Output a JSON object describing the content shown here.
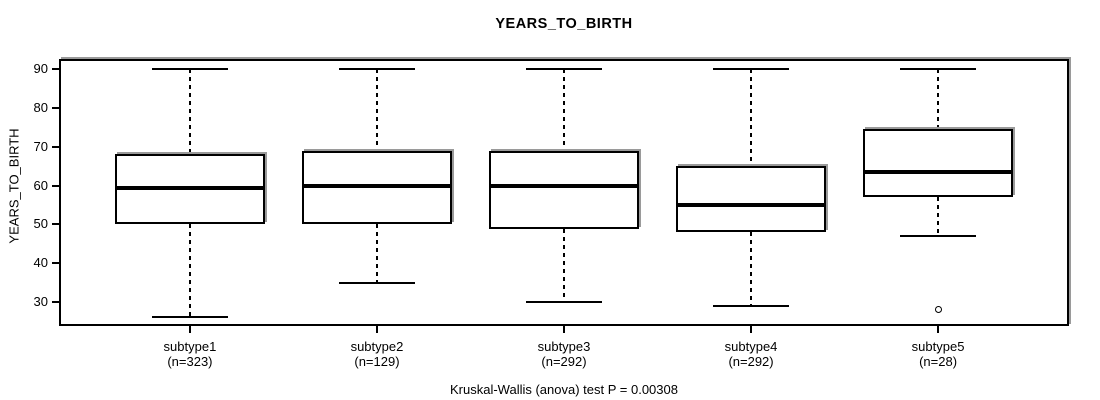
{
  "figure": {
    "title": "YEARS_TO_BIRTH",
    "y_axis_label": "YEARS_TO_BIRTH",
    "footer": "Kruskal-Wallis (anova) test P = 0.00308"
  },
  "colors": {
    "line": "#000000",
    "background": "#ffffff",
    "frame_shadow": "#9a9a9a"
  },
  "chart_data": {
    "type": "boxplot",
    "title": "YEARS_TO_BIRTH",
    "xlabel": "",
    "ylabel": "YEARS_TO_BIRTH",
    "footer_annotation": "Kruskal-Wallis (anova) test P = 0.00308",
    "statistical_test": "Kruskal-Wallis (anova)",
    "p_value": 0.00308,
    "grid": false,
    "y_ticks": [
      30,
      40,
      50,
      60,
      70,
      80,
      90
    ],
    "ylim": [
      23.8,
      92.6
    ],
    "categories": [
      "subtype1",
      "subtype2",
      "subtype3",
      "subtype4",
      "subtype5"
    ],
    "category_sublabels": [
      "(n=323)",
      "(n=129)",
      "(n=292)",
      "(n=292)",
      "(n=28)"
    ],
    "groups": [
      {
        "label": "subtype1",
        "n_label": "(n=323)",
        "n": 323,
        "whisker_low": 26,
        "q1": 50,
        "median": 59.3,
        "q3": 68,
        "whisker_high": 90,
        "outliers": []
      },
      {
        "label": "subtype2",
        "n_label": "(n=129)",
        "n": 129,
        "whisker_low": 35,
        "q1": 50,
        "median": 60,
        "q3": 69,
        "whisker_high": 90,
        "outliers": []
      },
      {
        "label": "subtype3",
        "n_label": "(n=292)",
        "n": 292,
        "whisker_low": 30,
        "q1": 48.8,
        "median": 60,
        "q3": 69,
        "whisker_high": 90,
        "outliers": []
      },
      {
        "label": "subtype4",
        "n_label": "(n=292)",
        "n": 292,
        "whisker_low": 29,
        "q1": 48,
        "median": 55,
        "q3": 65,
        "whisker_high": 90,
        "outliers": []
      },
      {
        "label": "subtype5",
        "n_label": "(n=28)",
        "n": 28,
        "whisker_low": 47,
        "q1": 57,
        "median": 63.5,
        "q3": 74.5,
        "whisker_high": 90,
        "outliers": [
          28
        ]
      }
    ]
  }
}
